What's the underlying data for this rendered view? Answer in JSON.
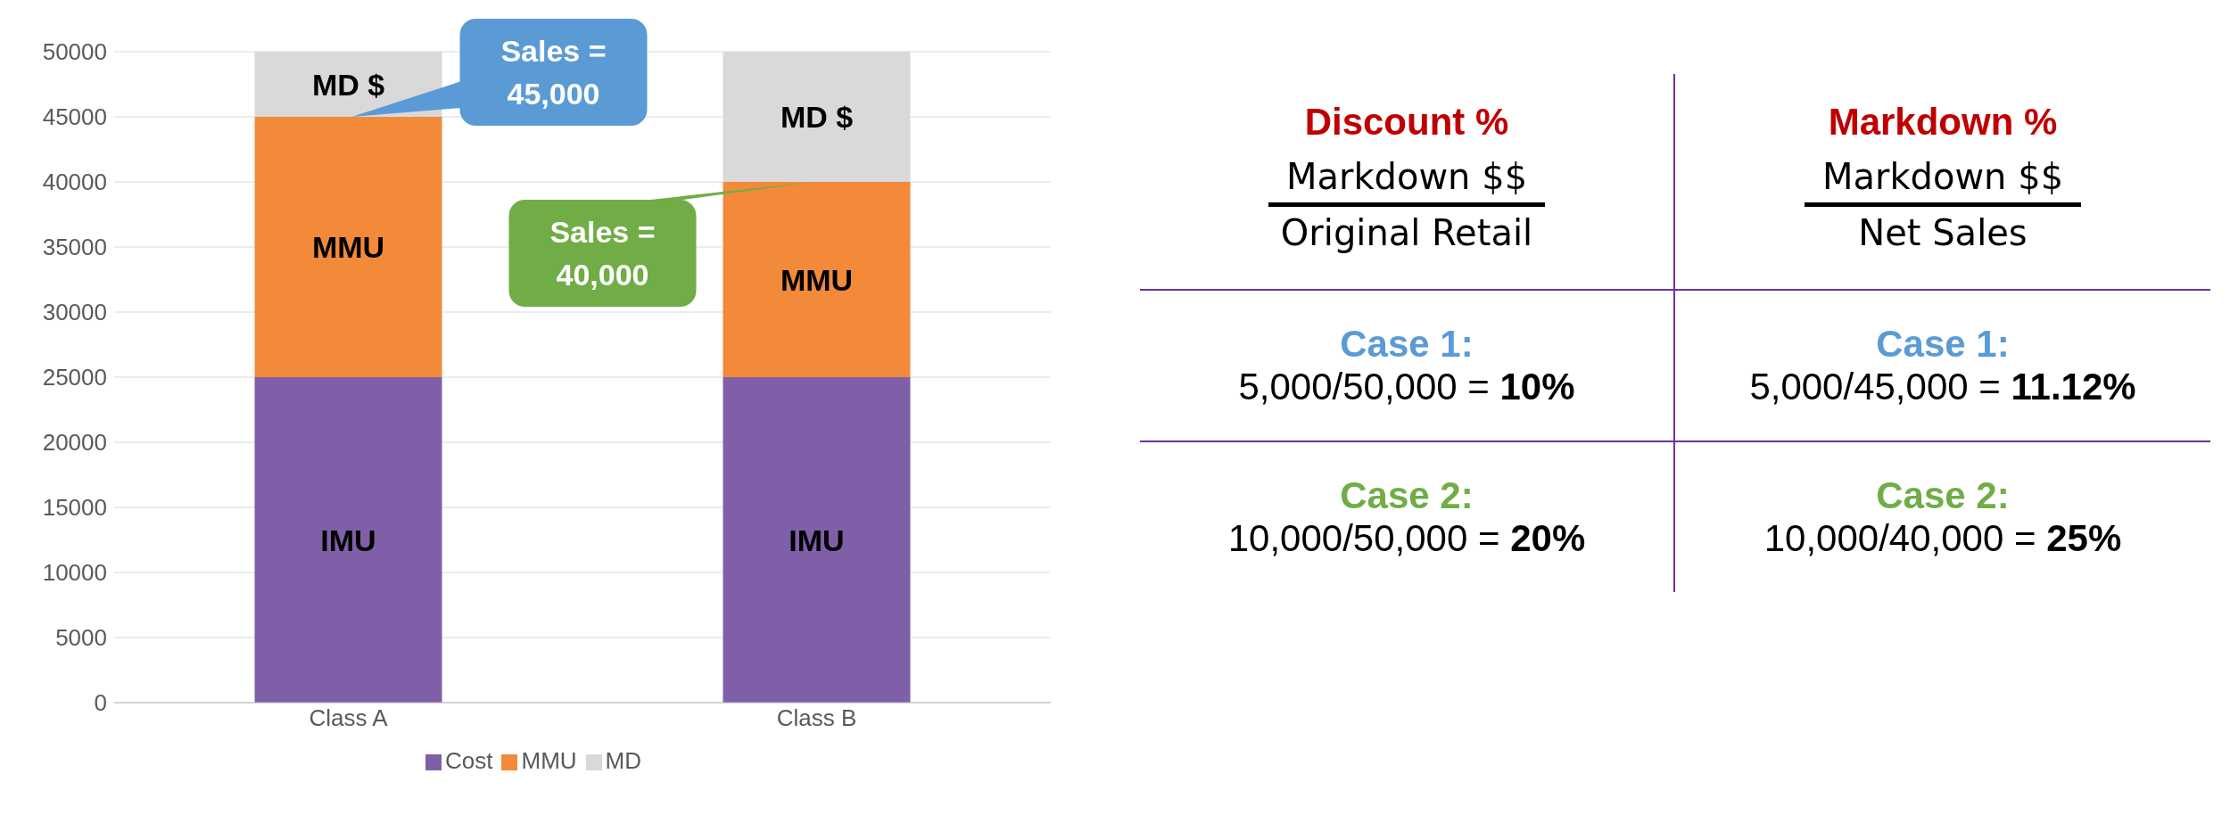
{
  "chart_data": [
    {
      "type": "bar",
      "stacked": true,
      "categories": [
        "Class A",
        "Class B"
      ],
      "series": [
        {
          "name": "Cost",
          "color": "#7f5fa8",
          "values": [
            25000,
            25000
          ]
        },
        {
          "name": "MMU",
          "color": "#f28a3a",
          "values": [
            20000,
            15000
          ]
        },
        {
          "name": "MD",
          "color": "#d9d9d9",
          "values": [
            5000,
            10000
          ]
        }
      ],
      "ylim": [
        0,
        50000
      ],
      "yticks": [
        0,
        5000,
        10000,
        15000,
        20000,
        25000,
        30000,
        35000,
        40000,
        45000,
        50000
      ],
      "grid": "y",
      "legend": "bottom",
      "annotations": [
        "MD $",
        "MMU",
        "IMU",
        "MD $",
        "MMU",
        "IMU",
        {
          "text": "Sales = 45,000",
          "x": "Class A",
          "y": 45000
        },
        {
          "text": "Sales = 40,000",
          "x": "Class B",
          "y": 40000
        }
      ]
    },
    {
      "type": "other",
      "annotations": [
        "Discount %",
        "Markdown $$",
        "Original Retail",
        "Markdown %",
        "Markdown $$",
        "Net Sales",
        "Case 1:",
        "5,000/50,000 = 10%",
        "Case 1:",
        "5,000/45,000 = 11.12%",
        "Case 2:",
        "10,000/50,000 = 20%",
        "Case 2:",
        "10,000/40,000 = 25%"
      ]
    }
  ]
}
